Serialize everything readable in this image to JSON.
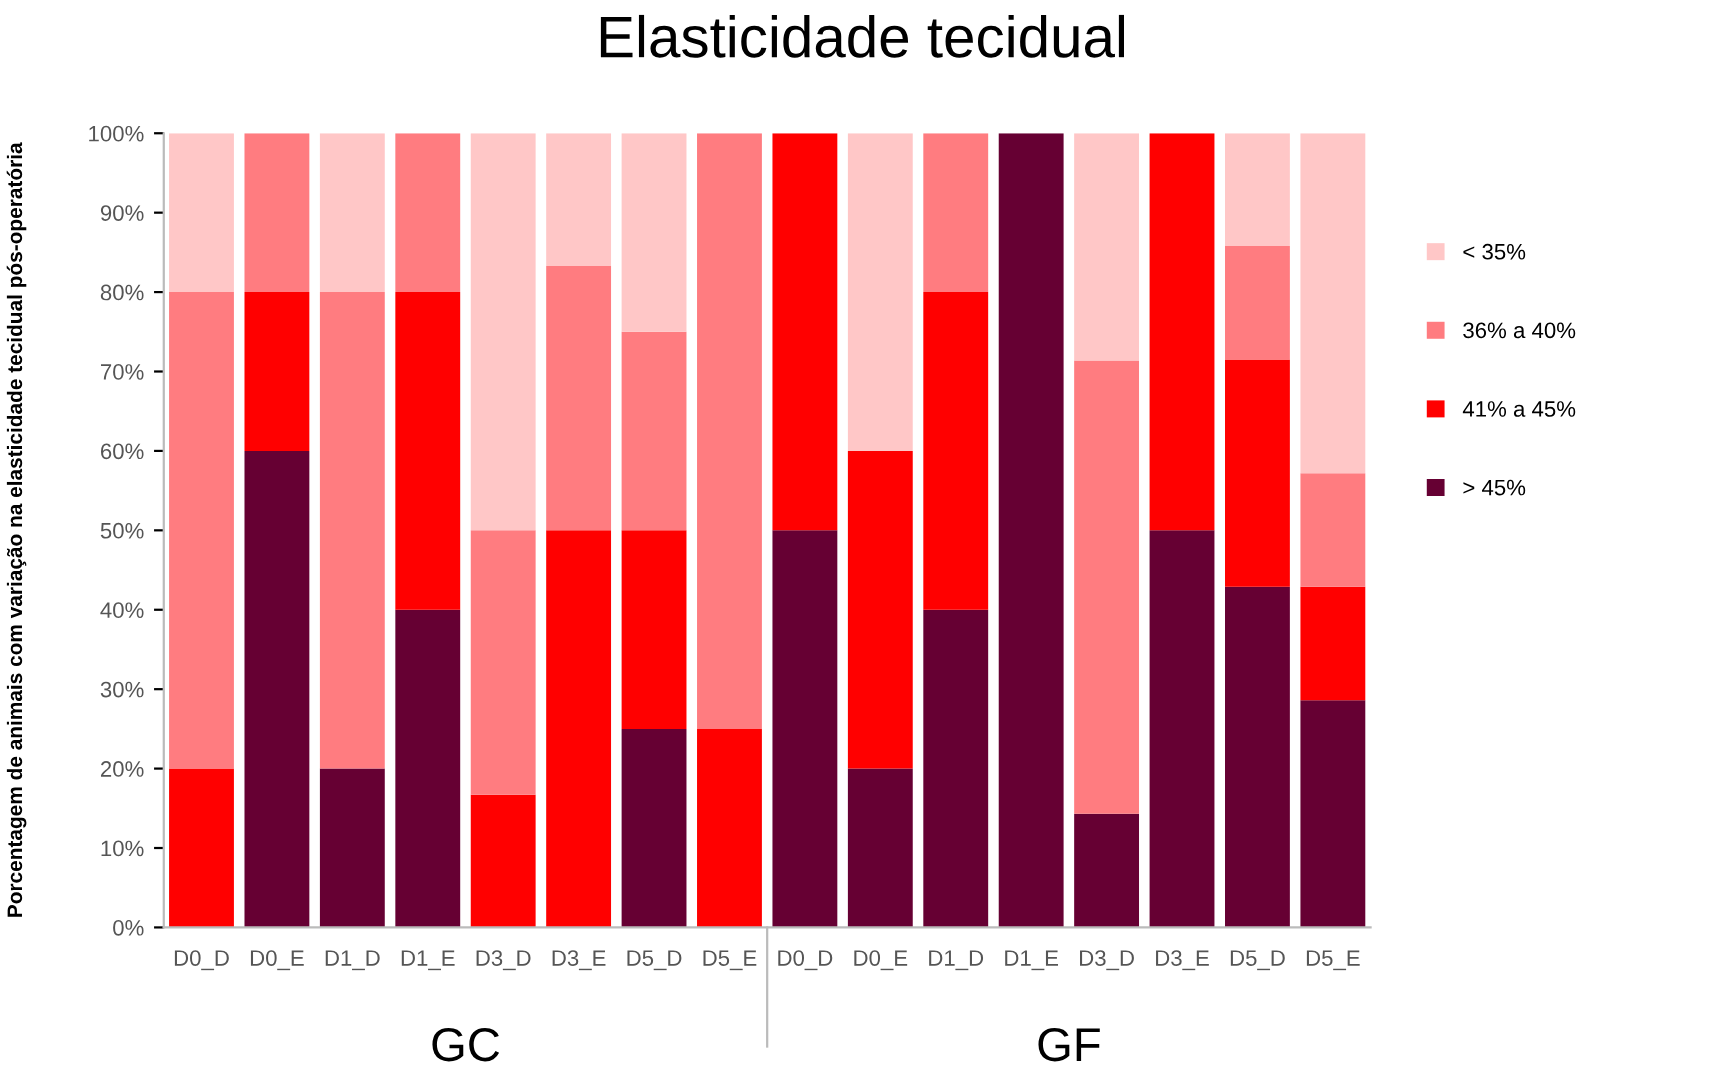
{
  "chart_data": {
    "type": "bar",
    "title": "Elasticidade tecidual",
    "ylabel": "Porcentagem de animais com variação na elasticidade tecidual pós-operatória",
    "categories": [
      "D0_D",
      "D0_E",
      "D1_D",
      "D1_E",
      "D3_D",
      "D3_E",
      "D5_D",
      "D5_E",
      "D0_D",
      "D0_E",
      "D1_D",
      "D1_E",
      "D3_D",
      "D3_E",
      "D5_D",
      "D5_E"
    ],
    "stacked": true,
    "series": [
      {
        "name": "> 45%",
        "color": "#660033",
        "values": [
          0,
          60,
          20,
          40,
          0,
          0,
          25,
          0,
          50,
          20,
          40,
          100,
          14.3,
          50,
          42.9,
          28.6
        ]
      },
      {
        "name": "41% a 45%",
        "color": "#ff0000",
        "values": [
          20,
          20,
          0,
          40,
          16.7,
          50,
          25,
          25,
          50,
          40,
          40,
          0,
          0,
          50,
          28.6,
          14.3
        ]
      },
      {
        "name": "36% a 40%",
        "color": "#ff7c80",
        "values": [
          60,
          20,
          60,
          20,
          33.3,
          33.3,
          25,
          75,
          0,
          0,
          20,
          0,
          57.1,
          0,
          14.3,
          14.3
        ]
      },
      {
        "name": "< 35%",
        "color": "#ffc7c7",
        "values": [
          20,
          0,
          20,
          0,
          50,
          16.7,
          25,
          0,
          0,
          40,
          0,
          0,
          28.6,
          0,
          14.2,
          42.8
        ]
      }
    ],
    "ylim": [
      0,
      100
    ],
    "yticks": [
      {
        "value": 0,
        "label": "0%"
      },
      {
        "value": 10,
        "label": "10%"
      },
      {
        "value": 20,
        "label": "20%"
      },
      {
        "value": 30,
        "label": "30%"
      },
      {
        "value": 40,
        "label": "40%"
      },
      {
        "value": 50,
        "label": "50%"
      },
      {
        "value": 60,
        "label": "60%"
      },
      {
        "value": 70,
        "label": "70%"
      },
      {
        "value": 80,
        "label": "80%"
      },
      {
        "value": 90,
        "label": "90%"
      },
      {
        "value": 100,
        "label": "100%"
      }
    ],
    "annotations": [
      "GC",
      "GF"
    ],
    "legend": "right",
    "grid": false
  }
}
